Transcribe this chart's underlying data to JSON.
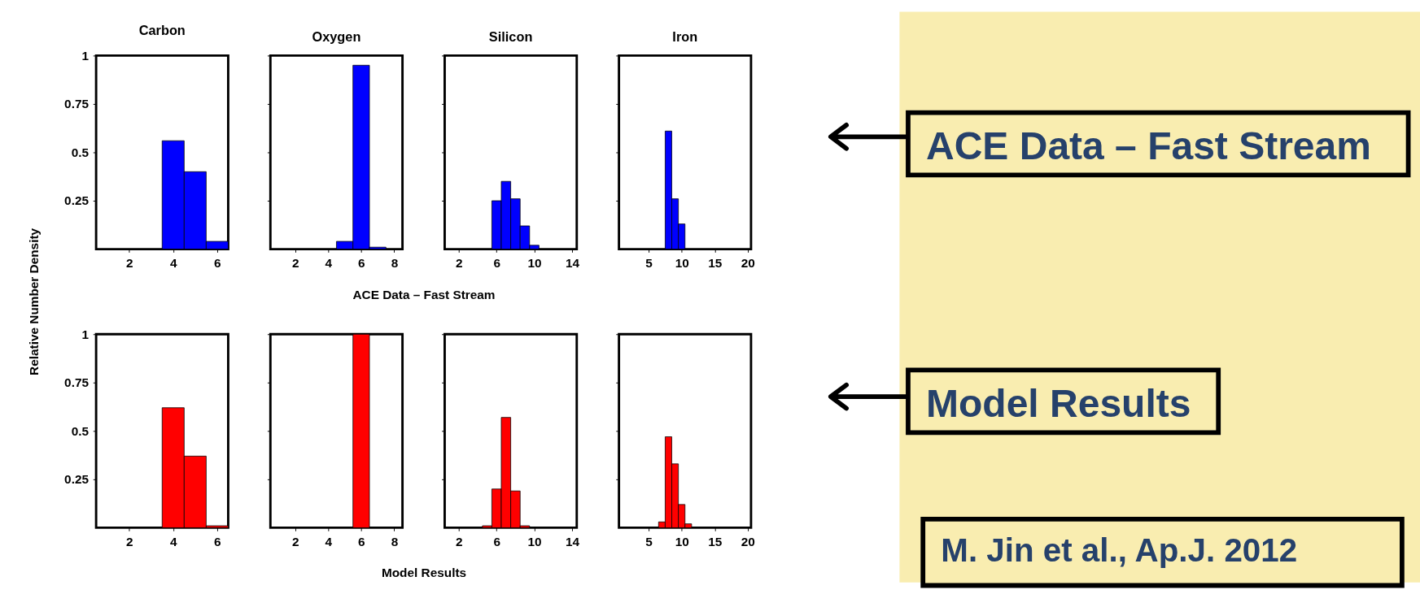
{
  "chart_data": [
    {
      "type": "histogram",
      "title": "Carbon",
      "ylabel": "Relative Number Density",
      "bins": [
        0.5,
        1.5,
        2.5,
        3.5,
        4.5,
        5.5,
        6.5
      ],
      "values": [
        0,
        0,
        0,
        0.56,
        0.4,
        0.04
      ],
      "color": "#0000ff",
      "xlim": [
        0.5,
        6.5
      ],
      "xticks": [
        2,
        4,
        6
      ],
      "ylim": [
        0,
        1
      ],
      "yticks": [
        0.25,
        0.5,
        0.75,
        1
      ],
      "grid": false
    },
    {
      "type": "histogram",
      "title": "Oxygen",
      "xlabel": "ACE Data – Fast Stream",
      "bins": [
        0.5,
        1.5,
        2.5,
        3.5,
        4.5,
        5.5,
        6.5,
        7.5,
        8.5
      ],
      "values": [
        0,
        0,
        0,
        0,
        0.04,
        0.95,
        0.01,
        0
      ],
      "color": "#0000ff",
      "xlim": [
        0.5,
        8.5
      ],
      "xticks": [
        2,
        4,
        6,
        8
      ],
      "ylim": [
        0,
        1
      ],
      "yticks": [
        0.25,
        0.5,
        0.75,
        1
      ],
      "tick_labels": "x",
      "grid": false
    },
    {
      "type": "histogram",
      "title": "Silicon",
      "bins": [
        0.5,
        1.5,
        2.5,
        3.5,
        4.5,
        5.5,
        6.5,
        7.5,
        8.5,
        9.5,
        10.5,
        11.5,
        12.5,
        13.5,
        14.5
      ],
      "values": [
        0,
        0,
        0,
        0,
        0,
        0.25,
        0.35,
        0.26,
        0.12,
        0.02,
        0,
        0,
        0,
        0
      ],
      "color": "#0000ff",
      "xlim": [
        0.5,
        14.5
      ],
      "xticks": [
        2,
        6,
        10,
        14
      ],
      "ylim": [
        0,
        1
      ],
      "yticks": [
        0.25,
        0.5,
        0.75,
        1
      ],
      "tick_labels": "x",
      "grid": false
    },
    {
      "type": "histogram",
      "title": "Iron",
      "annotations": [
        "ACE Data – Fast Stream"
      ],
      "bins": [
        0.5,
        1.5,
        2.5,
        3.5,
        4.5,
        5.5,
        6.5,
        7.5,
        8.5,
        9.5,
        10.5,
        11.5,
        12.5,
        13.5,
        14.5,
        15.5,
        16.5,
        17.5,
        18.5,
        19.5,
        20.5
      ],
      "values": [
        0,
        0,
        0,
        0,
        0,
        0,
        0,
        0.61,
        0.26,
        0.13,
        0,
        0,
        0,
        0,
        0,
        0,
        0,
        0,
        0,
        0
      ],
      "color": "#0000ff",
      "xlim": [
        0.5,
        20.5
      ],
      "xticks": [
        5,
        10,
        15,
        20
      ],
      "ylim": [
        0,
        1
      ],
      "yticks": [
        0.25,
        0.5,
        0.75,
        1
      ],
      "tick_labels": "x",
      "grid": false
    },
    {
      "type": "histogram",
      "bins": [
        0.5,
        1.5,
        2.5,
        3.5,
        4.5,
        5.5,
        6.5
      ],
      "values": [
        0,
        0,
        0,
        0.62,
        0.37,
        0.01
      ],
      "color": "#ff0000",
      "xlim": [
        0.5,
        6.5
      ],
      "xticks": [
        2,
        4,
        6
      ],
      "ylim": [
        0,
        1
      ],
      "yticks": [
        0.25,
        0.5,
        0.75,
        1
      ],
      "grid": false
    },
    {
      "type": "histogram",
      "xlabel": "Model Results",
      "bins": [
        0.5,
        1.5,
        2.5,
        3.5,
        4.5,
        5.5,
        6.5,
        7.5,
        8.5
      ],
      "values": [
        0,
        0,
        0,
        0,
        0,
        1,
        0,
        0
      ],
      "color": "#ff0000",
      "xlim": [
        0.5,
        8.5
      ],
      "xticks": [
        2,
        4,
        6,
        8
      ],
      "ylim": [
        0,
        1
      ],
      "yticks": [
        0.25,
        0.5,
        0.75,
        1
      ],
      "tick_labels": "x",
      "grid": false
    },
    {
      "type": "histogram",
      "bins": [
        0.5,
        1.5,
        2.5,
        3.5,
        4.5,
        5.5,
        6.5,
        7.5,
        8.5,
        9.5,
        10.5,
        11.5,
        12.5,
        13.5,
        14.5
      ],
      "values": [
        0,
        0,
        0,
        0,
        0.01,
        0.2,
        0.57,
        0.19,
        0.01,
        0,
        0,
        0,
        0,
        0
      ],
      "color": "#ff0000",
      "xlim": [
        0.5,
        14.5
      ],
      "xticks": [
        2,
        6,
        10,
        14
      ],
      "ylim": [
        0,
        1
      ],
      "yticks": [
        0.25,
        0.5,
        0.75,
        1
      ],
      "tick_labels": "x",
      "grid": false
    },
    {
      "type": "histogram",
      "annotations": [
        "Model Results",
        "M. Jin et al., Ap.J. 2012"
      ],
      "bins": [
        0.5,
        1.5,
        2.5,
        3.5,
        4.5,
        5.5,
        6.5,
        7.5,
        8.5,
        9.5,
        10.5,
        11.5,
        12.5,
        13.5,
        14.5,
        15.5,
        16.5,
        17.5,
        18.5,
        19.5,
        20.5
      ],
      "values": [
        0,
        0,
        0,
        0,
        0,
        0,
        0.03,
        0.47,
        0.33,
        0.12,
        0.02,
        0,
        0,
        0,
        0,
        0,
        0,
        0,
        0,
        0
      ],
      "color": "#ff0000",
      "xlim": [
        0.5,
        20.5
      ],
      "xticks": [
        5,
        10,
        15,
        20
      ],
      "ylim": [
        0,
        1
      ],
      "yticks": [
        0.25,
        0.5,
        0.75,
        1
      ],
      "tick_labels": "x",
      "grid": false
    }
  ]
}
